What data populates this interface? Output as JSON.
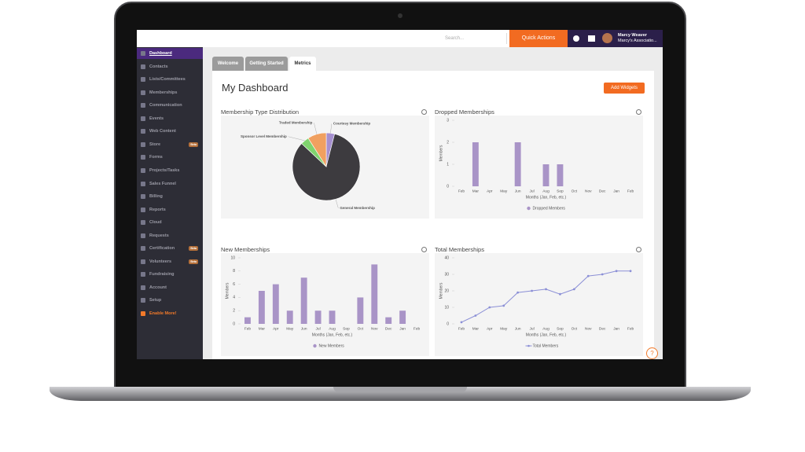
{
  "topbar": {
    "search": "Search...",
    "quick_actions": "Quick Actions",
    "user_name": "Marcy Weaver",
    "user_org": "Marcy's Associatio..."
  },
  "sidebar": {
    "items": [
      {
        "label": "Dashboard"
      },
      {
        "label": "Contacts"
      },
      {
        "label": "Lists/Committees"
      },
      {
        "label": "Memberships"
      },
      {
        "label": "Communication"
      },
      {
        "label": "Events"
      },
      {
        "label": "Web Content"
      },
      {
        "label": "Store",
        "badge": "Beta"
      },
      {
        "label": "Forms"
      },
      {
        "label": "Projects/Tasks"
      },
      {
        "label": "Sales Funnel"
      },
      {
        "label": "Billing"
      },
      {
        "label": "Reports"
      },
      {
        "label": "Cloud"
      },
      {
        "label": "Requests"
      },
      {
        "label": "Certification",
        "badge": "Beta"
      },
      {
        "label": "Volunteers",
        "badge": "Beta"
      },
      {
        "label": "Fundraising"
      },
      {
        "label": "Account"
      },
      {
        "label": "Setup"
      },
      {
        "label": "Enable More!"
      }
    ]
  },
  "tabs": [
    "Welcome",
    "Getting Started",
    "Metrics"
  ],
  "dashboard": {
    "title": "My Dashboard",
    "button": "Add Widgets"
  },
  "help": "?",
  "widgets": [
    {
      "title": "Membership Type Distribution",
      "chart": {
        "type": "pie",
        "categories": [
          "Courtesy Membership",
          "General Membership",
          "Sponsor Level Membership",
          "Traded Membership"
        ],
        "values": [
          4,
          83,
          4,
          9
        ],
        "colors": [
          "#a58fcf",
          "#3d3b3f",
          "#7fd36e",
          "#f0a060"
        ]
      }
    },
    {
      "title": "Dropped Memberships",
      "chart": {
        "type": "bar",
        "y_label": "Members",
        "x_label": "Months (Jan, Feb, etc.)",
        "categories": [
          "Feb",
          "Mar",
          "Apr",
          "May",
          "Jun",
          "Jul",
          "Aug",
          "Sep",
          "Oct",
          "Nov",
          "Dec",
          "Jan",
          "Feb"
        ],
        "series": [
          {
            "name": "Dropped Members",
            "color": "#a994c7",
            "values": [
              0,
              2,
              0,
              0,
              2,
              0,
              1,
              1,
              0,
              0,
              0,
              0,
              0
            ]
          }
        ],
        "ylim": [
          0,
          3
        ],
        "yticks": [
          0,
          1,
          2,
          3
        ],
        "grid": false
      }
    },
    {
      "title": "New Memberships",
      "chart": {
        "type": "bar",
        "y_label": "Members",
        "x_label": "Months (Jan, Feb, etc.)",
        "categories": [
          "Feb",
          "Mar",
          "Apr",
          "May",
          "Jun",
          "Jul",
          "Aug",
          "Sep",
          "Oct",
          "Nov",
          "Dec",
          "Jan",
          "Feb"
        ],
        "series": [
          {
            "name": "New Members",
            "color": "#a994c7",
            "values": [
              1,
              5,
              6,
              2,
              7,
              2,
              2,
              0,
              4,
              9,
              1,
              2,
              0
            ]
          }
        ],
        "ylim": [
          0,
          10
        ],
        "yticks": [
          0,
          2,
          4,
          6,
          8,
          10
        ],
        "grid": false
      }
    },
    {
      "title": "Total Memberships",
      "chart": {
        "type": "line",
        "y_label": "Members",
        "x_label": "Months (Jan, Feb, etc.)",
        "categories": [
          "Feb",
          "Mar",
          "Apr",
          "May",
          "Jun",
          "Jul",
          "Aug",
          "Sep",
          "Oct",
          "Nov",
          "Dec",
          "Jan",
          "Feb"
        ],
        "series": [
          {
            "name": "Total Members",
            "color": "#8b8fd6",
            "values": [
              1,
              5,
              10,
              11,
              19,
              20,
              21,
              18,
              21,
              29,
              30,
              32,
              32
            ]
          }
        ],
        "ylim": [
          0,
          40
        ],
        "yticks": [
          0,
          10,
          20,
          30,
          40
        ],
        "grid": false
      }
    }
  ]
}
